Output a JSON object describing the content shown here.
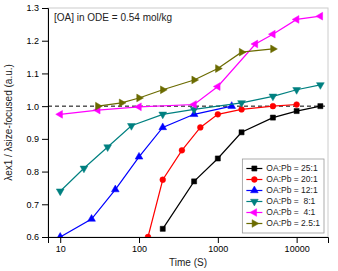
{
  "chart_data": {
    "type": "line",
    "title": "[OA] in ODE = 0.54 mol/kg",
    "xlabel": "Time (S)",
    "ylabel": "λex1 / λsize-focused (a.u.)",
    "log": "x",
    "xlim": [
      7,
      25000
    ],
    "xticks": [
      10,
      100,
      1000,
      10000
    ],
    "ylim": [
      0.6,
      1.3
    ],
    "yticks": [
      0.6,
      0.7,
      0.8,
      0.9,
      {
        "value": 1.0,
        "label": "1.0"
      },
      1.1,
      1.2,
      1.3
    ],
    "legend": "lower right",
    "reference_lines": [
      {
        "y": 1.0,
        "line_style": "dashed",
        "color": "#000000"
      }
    ],
    "series": [
      {
        "name": "OA:Pb = 25:1",
        "color": "#000000",
        "marker": "square",
        "x": [
          200,
          500,
          1000,
          2000,
          5000,
          10000,
          20000
        ],
        "values": [
          0.625,
          0.77,
          0.84,
          0.92,
          0.965,
          0.985,
          1.0
        ]
      },
      {
        "name": "OA:Pb = 20:1",
        "color": "#ff0000",
        "marker": "circle",
        "x": [
          130,
          200,
          350,
          600,
          1000,
          2000,
          5000,
          10000
        ],
        "values": [
          0.6,
          0.775,
          0.865,
          0.935,
          0.975,
          0.99,
          1.0,
          1.005
        ]
      },
      {
        "name": "OA:Pb = 12:1",
        "color": "#0000ff",
        "marker": "triangle-up",
        "x": [
          10,
          25,
          50,
          100,
          200,
          500,
          1500
        ],
        "values": [
          0.6,
          0.655,
          0.745,
          0.845,
          0.935,
          0.975,
          1.0
        ]
      },
      {
        "name": "OA:Pb =  8:1",
        "color": "#008080",
        "marker": "triangle-down",
        "x": [
          10,
          20,
          40,
          80,
          200,
          500,
          2000,
          5000,
          10000,
          20000
        ],
        "values": [
          0.74,
          0.81,
          0.875,
          0.94,
          0.975,
          0.99,
          1.01,
          1.03,
          1.05,
          1.065
        ]
      },
      {
        "name": "OA:Pb =  4:1",
        "color": "#ff00ff",
        "marker": "triangle-left",
        "x": [
          10,
          30,
          100,
          500,
          1000,
          3000,
          5000,
          10000,
          20000
        ],
        "values": [
          0.975,
          0.988,
          0.998,
          1.005,
          1.06,
          1.19,
          1.22,
          1.265,
          1.275
        ]
      },
      {
        "name": "OA:Pb = 2.5:1",
        "color": "#6b6b00",
        "marker": "triangle-right",
        "x": [
          30,
          60,
          100,
          200,
          500,
          1000,
          2000,
          5000
        ],
        "values": [
          1.0,
          1.01,
          1.025,
          1.05,
          1.08,
          1.115,
          1.165,
          1.175
        ]
      }
    ]
  }
}
